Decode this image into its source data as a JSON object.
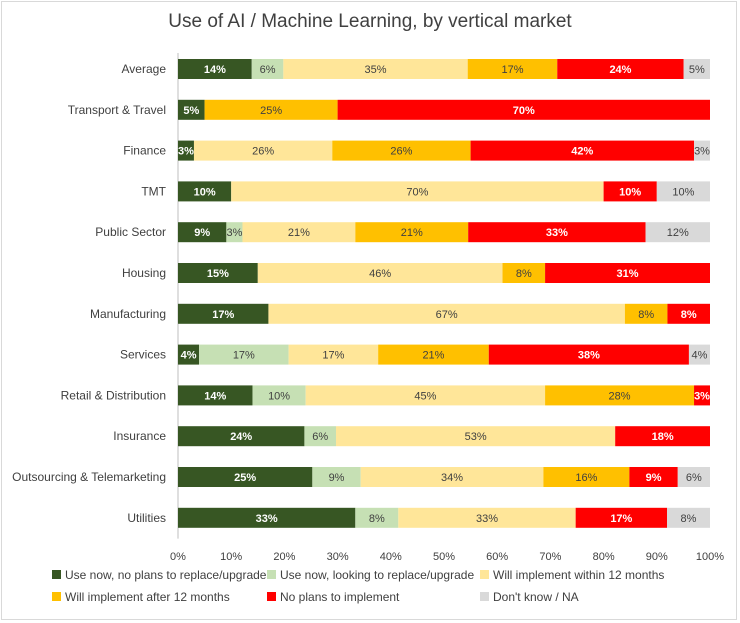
{
  "chart_data": {
    "type": "bar",
    "orientation": "horizontal",
    "stacked": "100%",
    "title": "Use of AI / Machine Learning, by vertical market",
    "categories": [
      "Average",
      "Transport & Travel",
      "Finance",
      "TMT",
      "Public Sector",
      "Housing",
      "Manufacturing",
      "Services",
      "Retail & Distribution",
      "Insurance",
      "Outsourcing & Telemarketing",
      "Utilities"
    ],
    "series": [
      {
        "name": "Use now, no plans to replace/upgrade",
        "color": "#375623",
        "label_color": "#ffffff",
        "values": [
          14,
          5,
          3,
          10,
          9,
          15,
          17,
          4,
          14,
          24,
          25,
          33
        ]
      },
      {
        "name": "Use now, looking to replace/upgrade",
        "color": "#c6e0b4",
        "label_color": "#404040",
        "values": [
          6,
          null,
          null,
          null,
          3,
          null,
          null,
          17,
          10,
          6,
          9,
          8
        ]
      },
      {
        "name": "Will implement within 12 months",
        "color": "#ffe699",
        "label_color": "#404040",
        "values": [
          35,
          null,
          26,
          70,
          21,
          46,
          67,
          17,
          45,
          53,
          34,
          33
        ]
      },
      {
        "name": "Will implement after 12 months",
        "color": "#ffc000",
        "label_color": "#404040",
        "values": [
          17,
          25,
          26,
          null,
          21,
          8,
          8,
          21,
          28,
          null,
          16,
          null
        ]
      },
      {
        "name": "No plans to implement",
        "color": "#ff0000",
        "label_color": "#ffffff",
        "values": [
          24,
          70,
          42,
          10,
          33,
          31,
          8,
          38,
          3,
          18,
          9,
          17
        ]
      },
      {
        "name": "Don't know / NA",
        "color": "#d9d9d9",
        "label_color": "#404040",
        "values": [
          5,
          null,
          3,
          10,
          12,
          null,
          null,
          4,
          null,
          null,
          6,
          8
        ]
      }
    ],
    "value_suffix": "%",
    "xlim": [
      0,
      100
    ],
    "x_ticks": [
      "0%",
      "10%",
      "20%",
      "30%",
      "40%",
      "50%",
      "60%",
      "70%",
      "80%",
      "90%",
      "100%"
    ],
    "grid": false,
    "legend_position": "bottom"
  }
}
